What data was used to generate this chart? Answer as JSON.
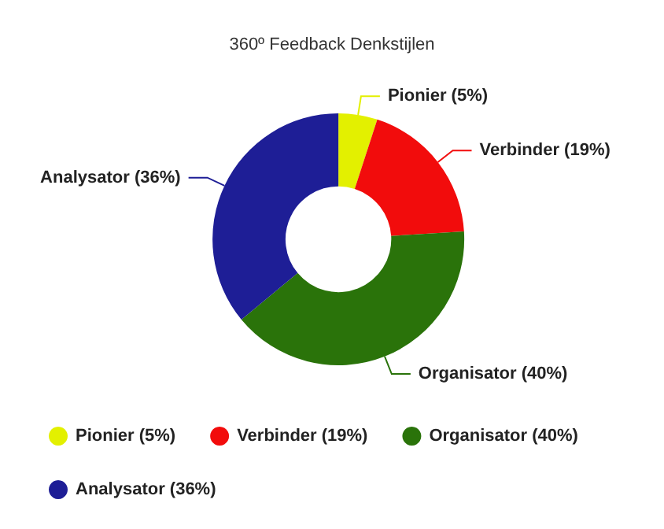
{
  "chart_data": {
    "type": "donut",
    "title": "360º Feedback Denkstijlen",
    "categories": [
      "Pionier (5%)",
      "Verbinder (19%)",
      "Organisator (40%)",
      "Analysator (36%)"
    ],
    "values": [
      5,
      19,
      40,
      36
    ],
    "colors": [
      "#e3f000",
      "#f20c0c",
      "#2a730a",
      "#1e1e96"
    ],
    "legend": "bottom"
  }
}
